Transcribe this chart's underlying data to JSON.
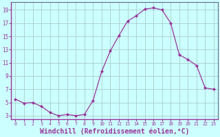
{
  "x": [
    0,
    1,
    2,
    3,
    4,
    5,
    6,
    7,
    8,
    9,
    10,
    11,
    12,
    13,
    14,
    15,
    16,
    17,
    18,
    19,
    20,
    21,
    22,
    23
  ],
  "y": [
    5.5,
    4.9,
    5.0,
    4.4,
    3.5,
    3.0,
    3.2,
    3.0,
    3.2,
    5.3,
    9.7,
    12.8,
    15.1,
    17.3,
    18.1,
    19.1,
    19.3,
    19.0,
    17.0,
    12.2,
    11.5,
    10.6,
    7.2,
    7.0
  ],
  "line_color": "#993399",
  "marker": "D",
  "marker_size": 2.2,
  "bg_color": "#ccffff",
  "grid_color": "#aacccc",
  "xlabel": "Windchill (Refroidissement éolien,°C)",
  "xlabel_fontsize": 7,
  "ytick_values": [
    3,
    5,
    7,
    9,
    11,
    13,
    15,
    17,
    19
  ],
  "xtick_labels": [
    "0",
    "1",
    "2",
    "3",
    "4",
    "5",
    "6",
    "7",
    "8",
    "9",
    "10",
    "11",
    "12",
    "13",
    "14",
    "15",
    "16",
    "17",
    "18",
    "19",
    "20",
    "21",
    "22",
    "23"
  ],
  "xtick_values": [
    0,
    1,
    2,
    3,
    4,
    5,
    6,
    7,
    8,
    9,
    10,
    11,
    12,
    13,
    14,
    15,
    16,
    17,
    18,
    19,
    20,
    21,
    22,
    23
  ],
  "ylim": [
    2.5,
    20.2
  ],
  "xlim": [
    -0.5,
    23.5
  ]
}
